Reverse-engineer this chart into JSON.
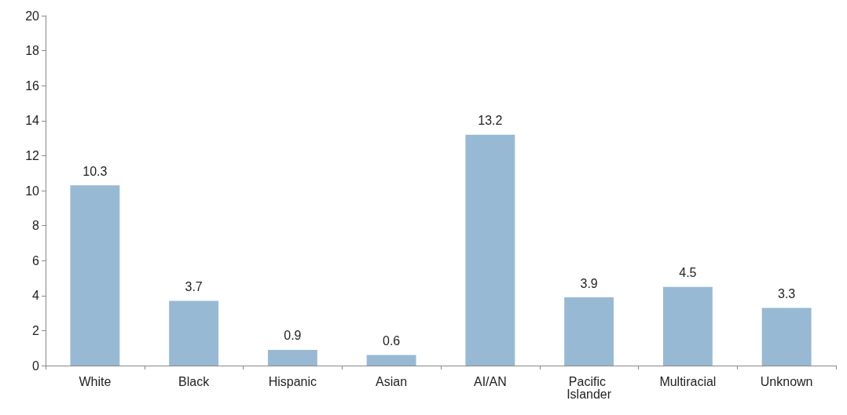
{
  "chart_data": {
    "type": "bar",
    "categories": [
      "White",
      "Black",
      "Hispanic",
      "Asian",
      "AI/AN",
      "Pacific Islander",
      "Multiracial",
      "Unknown"
    ],
    "values": [
      10.3,
      3.7,
      0.9,
      0.6,
      13.2,
      3.9,
      4.5,
      3.3
    ],
    "color": "#97b9d4",
    "ylim": [
      0,
      20
    ],
    "yticks": [
      0,
      2,
      4,
      6,
      8,
      10,
      12,
      14,
      16,
      18,
      20
    ],
    "grid": false,
    "data_labels": true
  }
}
